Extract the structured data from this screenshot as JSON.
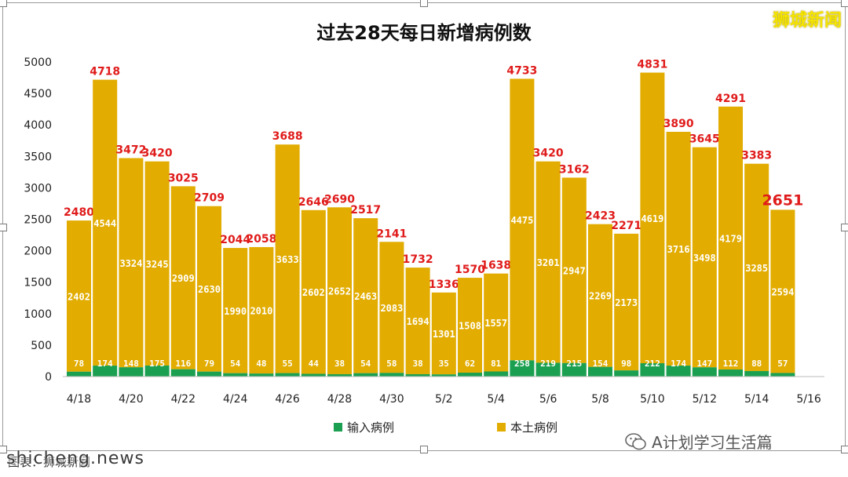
{
  "brand": "狮城新闻",
  "wechat_account": "A计划学习生活篇",
  "footer_source": "图表：狮城新闻",
  "watermark": "shicheng.news",
  "colors": {
    "imported": "#1aa050",
    "local": "#e2ac00",
    "total_label": "#e01b1b",
    "inner_label": "#ffffff",
    "axis_text": "#222222"
  },
  "chart_data": {
    "type": "bar",
    "stacked": true,
    "title": "过去28天每日新增病例数",
    "categories": [
      "4/18",
      "4/19",
      "4/20",
      "4/21",
      "4/22",
      "4/23",
      "4/24",
      "4/25",
      "4/26",
      "4/27",
      "4/28",
      "4/29",
      "4/30",
      "5/1",
      "5/2",
      "5/3",
      "5/4",
      "5/5",
      "5/6",
      "5/7",
      "5/8",
      "5/9",
      "5/10",
      "5/11",
      "5/12",
      "5/13",
      "5/14",
      "5/15"
    ],
    "x_tick_labels": [
      "4/18",
      "4/20",
      "4/22",
      "4/24",
      "4/26",
      "4/28",
      "4/30",
      "5/2",
      "5/4",
      "5/6",
      "5/8",
      "5/10",
      "5/12",
      "5/14",
      "5/16"
    ],
    "series": [
      {
        "name": "输入病例",
        "values": [
          78,
          174,
          148,
          175,
          116,
          79,
          54,
          48,
          55,
          44,
          38,
          54,
          58,
          38,
          35,
          62,
          81,
          258,
          219,
          215,
          154,
          98,
          212,
          174,
          147,
          112,
          88,
          57
        ]
      },
      {
        "name": "本土病例",
        "values": [
          2402,
          4544,
          3324,
          3245,
          2909,
          2630,
          1990,
          2010,
          3633,
          2602,
          2652,
          2463,
          2083,
          1694,
          1301,
          1508,
          1557,
          4475,
          3201,
          2947,
          2269,
          2173,
          4619,
          3716,
          3498,
          4179,
          3285,
          2594
        ]
      }
    ],
    "totals": [
      2480,
      4718,
      3472,
      3420,
      3025,
      2709,
      2044,
      2058,
      3688,
      2646,
      2690,
      2517,
      2141,
      1732,
      1336,
      1570,
      1638,
      4733,
      3420,
      3162,
      2423,
      2271,
      4831,
      3890,
      3645,
      4291,
      3383,
      2651
    ],
    "ylim": [
      0,
      5000
    ],
    "yticks": [
      0,
      500,
      1000,
      1500,
      2000,
      2500,
      3000,
      3500,
      4000,
      4500,
      5000
    ],
    "legend_position": "bottom",
    "grid": false
  }
}
